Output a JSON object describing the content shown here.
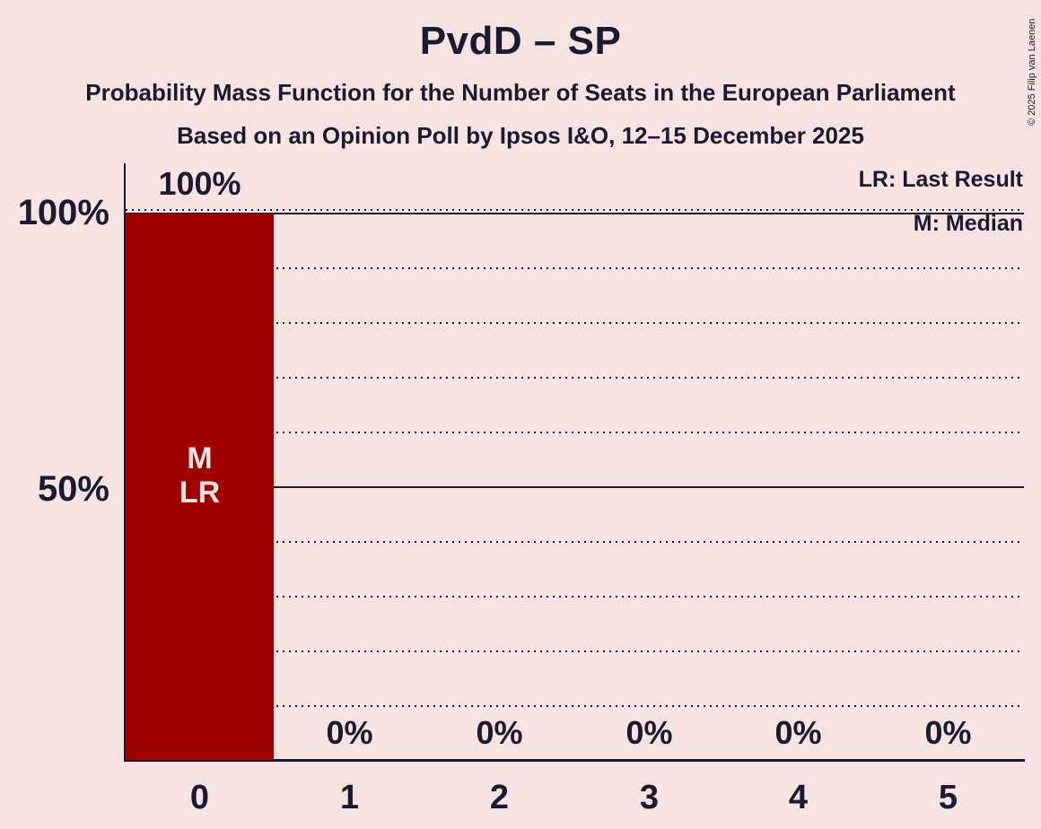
{
  "header": {
    "title": "PvdD – SP",
    "subtitle1": "Probability Mass Function for the Number of Seats in the European Parliament",
    "subtitle2": "Based on an Opinion Poll by Ipsos I&O, 12–15 December 2025"
  },
  "copyright": "© 2025 Filip van Laenen",
  "legend": {
    "lr": "LR: Last Result",
    "m": "M: Median"
  },
  "colors": {
    "background": "#f8e3e3",
    "bar": "#a00000",
    "ink": "#1a1a30",
    "bar_label": "#f8e3e3"
  },
  "chart_data": {
    "type": "bar",
    "title": "PvdD – SP",
    "categories": [
      "0",
      "1",
      "2",
      "3",
      "4",
      "5"
    ],
    "values": [
      100,
      0,
      0,
      0,
      0,
      0
    ],
    "value_labels": [
      "100%",
      "0%",
      "0%",
      "0%",
      "0%",
      "0%"
    ],
    "xlabel": "",
    "ylabel": "",
    "ylim": [
      0,
      100
    ],
    "y_ticks": [
      {
        "label": "100%",
        "value": 100
      },
      {
        "label": "50%",
        "value": 50
      }
    ],
    "gridlines": {
      "dotted_percent": [
        10,
        20,
        30,
        40,
        60,
        70,
        80,
        90,
        100
      ],
      "solid_percent": [
        50,
        100
      ]
    },
    "legend_entries": [
      "LR: Last Result",
      "M: Median"
    ],
    "legend_position": "top-right",
    "annotations": {
      "median_label": "M",
      "last_result_label": "LR",
      "median_seats": 0,
      "last_result_seats": 0,
      "annotated_bar": 0
    }
  }
}
